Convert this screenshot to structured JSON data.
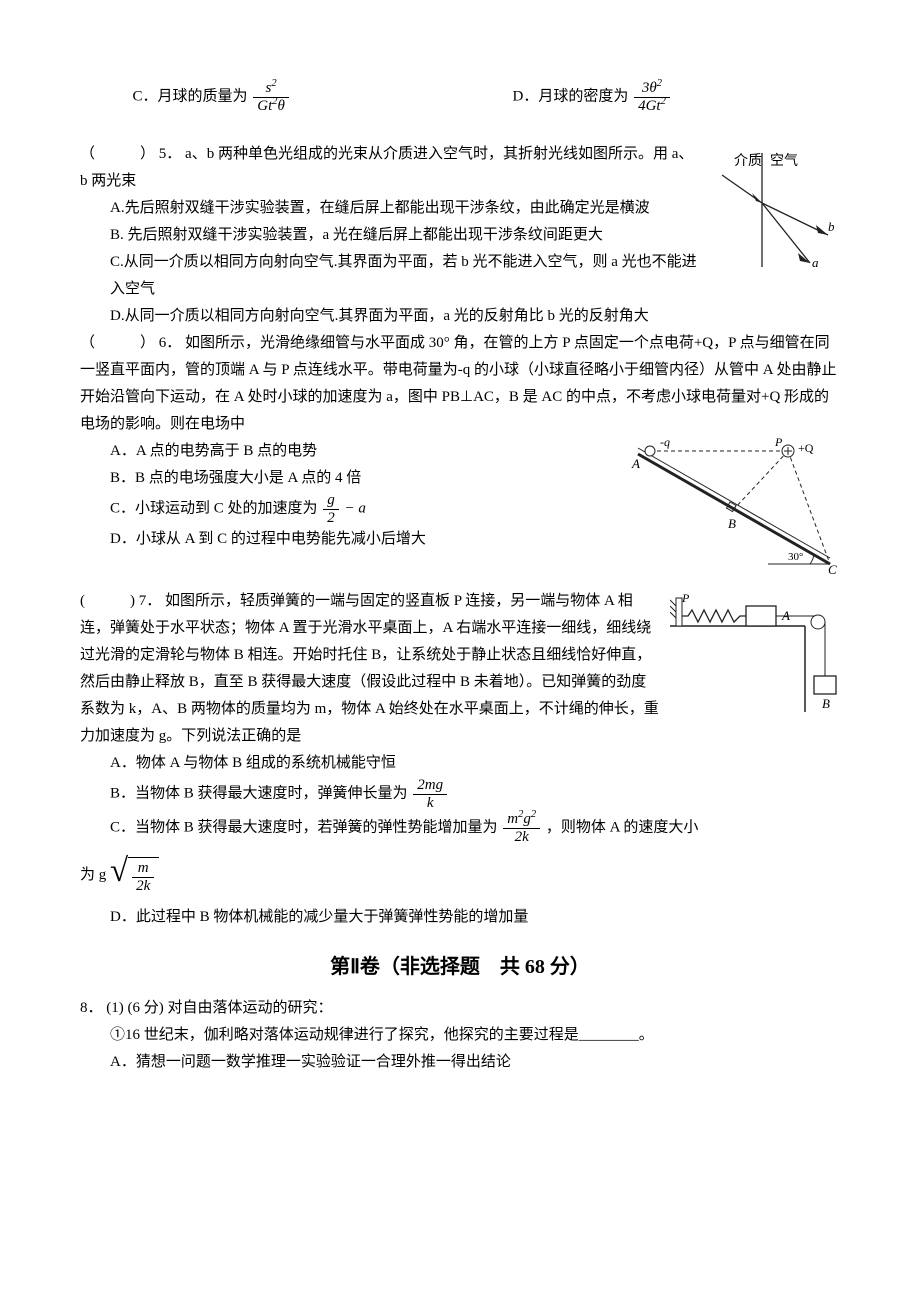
{
  "q4": {
    "optC_prefix": "C．月球的质量为",
    "optC_frac": {
      "num": "s<sup>2</sup>",
      "den": "Gt<sup>2</sup>θ"
    },
    "optD_prefix": "D．月球的密度为",
    "optD_frac": {
      "num": "3θ<sup>2</sup>",
      "den": "4Gt<sup>2</sup>"
    }
  },
  "q5": {
    "paren": "（　　　）",
    "num": "5．",
    "stem": "a、b 两种单色光组成的光束从介质进入空气时，其折射光线如图所示。用 a、b 两光束",
    "optA": "A.先后照射双缝干涉实验装置，在缝后屏上都能出现干涉条纹，由此确定光是横波",
    "optB": "B. 先后照射双缝干涉实验装置，a 光在缝后屏上都能出现干涉条纹间距更大",
    "optC": "C.从同一介质以相同方向射向空气.其界面为平面，若 b 光不能进入空气，则 a 光也不能进入空气",
    "optD": "D.从同一介质以相同方向射向空气.其界面为平面，a 光的反射角比 b 光的反射角大",
    "fig": {
      "left_label": "介质",
      "right_label": "空气",
      "b": "b",
      "a": "a"
    }
  },
  "q6": {
    "paren": "（　　　）",
    "num": "6．",
    "stem": "如图所示，光滑绝缘细管与水平面成 30° 角，在管的上方 P 点固定一个点电荷+Q，P 点与细管在同一竖直平面内，管的顶端 A 与 P 点连线水平。带电荷量为-q 的小球（小球直径略小于细管内径）从管中 A 处由静止开始沿管向下运动，在 A 处时小球的加速度为 a，图中 PB⊥AC，B 是 AC 的中点，不考虑小球电荷量对+Q 形成的电场的影响。则在电场中",
    "optA": "A．A 点的电势高于 B 点的电势",
    "optB": "B．B 点的电场强度大小是 A 点的 4 倍",
    "optC_prefix": "C．小球运动到 C 处的加速度为",
    "optC_frac": {
      "num": "g",
      "den": "2"
    },
    "optC_suffix": " − a",
    "optD": "D．小球从 A 到 C 的过程中电势能先减小后增大",
    "fig": {
      "A": "A",
      "P": "P",
      "Q": "+Q",
      "q": "-q",
      "B": "B",
      "C": "C",
      "angle": "30°"
    }
  },
  "q7": {
    "paren": "(　　　)",
    "num": "7．",
    "stem": "如图所示，轻质弹簧的一端与固定的竖直板 P 连接，另一端与物体 A 相连，弹簧处于水平状态；物体 A 置于光滑水平桌面上，A 右端水平连接一细线，细线绕过光滑的定滑轮与物体 B 相连。开始时托住 B，让系统处于静止状态且细线恰好伸直，然后由静止释放 B，直至 B 获得最大速度（假设此过程中 B 未着地）。已知弹簧的劲度系数为 k，A、B 两物体的质量均为 m，物体 A 始终处在水平桌面上，不计绳的伸长，重力加速度为 g。下列说法正确的是",
    "optA": "A．物体 A 与物体 B 组成的系统机械能守恒",
    "optB_prefix": "B．当物体 B 获得最大速度时，弹簧伸长量为",
    "optB_frac": {
      "num": "2mg",
      "den": "k"
    },
    "optC_prefix": "C．当物体 B 获得最大速度时，若弹簧的弹性势能增加量为",
    "optC_frac": {
      "num": "m<sup>2</sup>g<sup>2</sup>",
      "den": "2k"
    },
    "optC_suffix": "，则物体 A 的速度大小",
    "optC_line2_prefix": "为 g",
    "optC_sqrt": {
      "num": "m",
      "den": "2k"
    },
    "optD": "D．此过程中 B 物体机械能的减少量大于弹簧弹性势能的增加量",
    "fig": {
      "P": "P",
      "A": "A",
      "B": "B"
    }
  },
  "section2": "第Ⅱ卷（非选择题　共 68 分）",
  "q8": {
    "num": "8．",
    "part1_label": "(1) (6 分)",
    "part1_stem": "对自由落体运动的研究：",
    "item1": "①16 世纪末，伽利略对落体运动规律进行了探究，他探究的主要过程是________。",
    "optA": "A．猜想一问题一数学推理一实验验证一合理外推一得出结论"
  },
  "colors": {
    "text": "#000000",
    "bg": "#ffffff",
    "fig_stroke": "#222222",
    "fig_gray": "#dddddd"
  }
}
